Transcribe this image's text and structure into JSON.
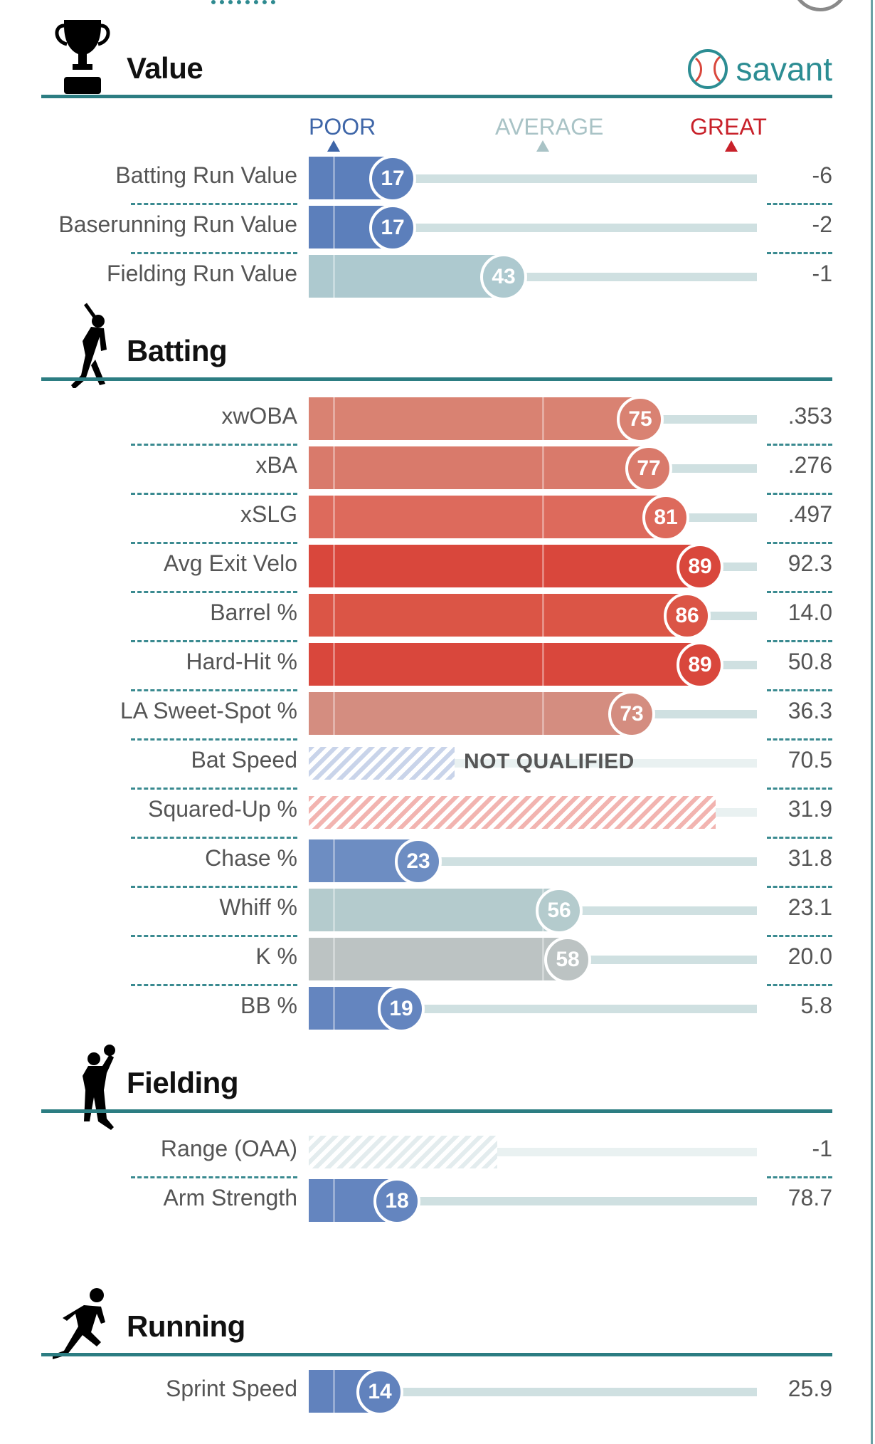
{
  "header": {
    "savant_label": "savant"
  },
  "scale": {
    "poor": "POOR",
    "average": "AVERAGE",
    "great": "GREAT"
  },
  "sections": {
    "value": {
      "title": "Value",
      "icon": "trophy-icon"
    },
    "batting": {
      "title": "Batting",
      "icon": "batter-silhouette-icon"
    },
    "fielding": {
      "title": "Fielding",
      "icon": "fielder-silhouette-icon"
    },
    "running": {
      "title": "Running",
      "icon": "runner-silhouette-icon"
    }
  },
  "rows": {
    "batting_run_value": {
      "label": "Batting Run Value",
      "value": "-6",
      "percentile": 17,
      "pct_label": "17",
      "color": "#5c7fbb"
    },
    "baserunning_run_value": {
      "label": "Baserunning Run Value",
      "value": "-2",
      "percentile": 17,
      "pct_label": "17",
      "color": "#5c7fbb"
    },
    "fielding_run_value": {
      "label": "Fielding Run Value",
      "value": "-1",
      "percentile": 43,
      "pct_label": "43",
      "color": "#adc9cf"
    },
    "xwoba": {
      "label": "xwOBA",
      "value": ".353",
      "percentile": 75,
      "pct_label": "75",
      "color": "#d98272"
    },
    "xba": {
      "label": "xBA",
      "value": ".276",
      "percentile": 77,
      "pct_label": "77",
      "color": "#d97a6b"
    },
    "xslg": {
      "label": "xSLG",
      "value": ".497",
      "percentile": 81,
      "pct_label": "81",
      "color": "#dd6a5c"
    },
    "avg_exit_velo": {
      "label": "Avg Exit Velo",
      "value": "92.3",
      "percentile": 89,
      "pct_label": "89",
      "color": "#d9473c"
    },
    "barrel_pct": {
      "label": "Barrel %",
      "value": "14.0",
      "percentile": 86,
      "pct_label": "86",
      "color": "#db5546"
    },
    "hard_hit_pct": {
      "label": "Hard-Hit %",
      "value": "50.8",
      "percentile": 89,
      "pct_label": "89",
      "color": "#d9473c"
    },
    "la_sweet_spot_pct": {
      "label": "LA Sweet-Spot %",
      "value": "36.3",
      "percentile": 73,
      "pct_label": "73",
      "color": "#d48d80"
    },
    "bat_speed": {
      "label": "Bat Speed",
      "value": "70.5",
      "status": "NOT QUALIFIED"
    },
    "squared_up_pct": {
      "label": "Squared-Up %",
      "value": "31.9"
    },
    "chase_pct": {
      "label": "Chase %",
      "value": "31.8",
      "percentile": 23,
      "pct_label": "23",
      "color": "#6d8dc2"
    },
    "whiff_pct": {
      "label": "Whiff %",
      "value": "23.1",
      "percentile": 56,
      "pct_label": "56",
      "color": "#b4cbcd"
    },
    "k_pct": {
      "label": "K %",
      "value": "20.0",
      "percentile": 58,
      "pct_label": "58",
      "color": "#bcc3c3"
    },
    "bb_pct": {
      "label": "BB %",
      "value": "5.8",
      "percentile": 19,
      "pct_label": "19",
      "color": "#6485bf"
    },
    "range_oaa": {
      "label": "Range (OAA)",
      "value": "-1"
    },
    "arm_strength": {
      "label": "Arm Strength",
      "value": "78.7",
      "percentile": 18,
      "pct_label": "18",
      "color": "#6485bf"
    },
    "sprint_speed": {
      "label": "Sprint Speed",
      "value": "25.9",
      "percentile": 14,
      "pct_label": "14",
      "color": "#6182bd"
    }
  }
}
